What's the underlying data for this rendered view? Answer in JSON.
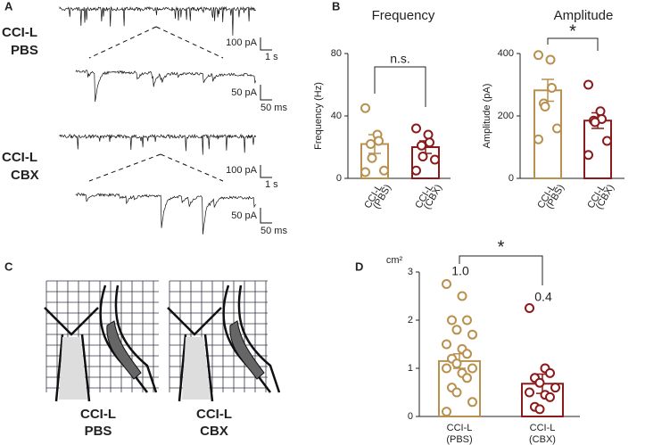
{
  "panel_labels": [
    "A",
    "B",
    "C",
    "D"
  ],
  "recordings": [
    {
      "label": [
        "CCI-L",
        "PBS"
      ],
      "scale_slow": [
        "100 pA",
        "1 s"
      ],
      "scale_fast": [
        "50 pA",
        "50 ms"
      ]
    },
    {
      "label": [
        "CCI-L",
        "CBX"
      ],
      "scale_slow": [
        "100 pA",
        "1 s"
      ],
      "scale_fast": [
        "50 pA",
        "50 ms"
      ]
    }
  ],
  "histology": [
    {
      "label": [
        "CCI-L",
        "PBS"
      ]
    },
    {
      "label": [
        "CCI-L",
        "CBX"
      ]
    }
  ],
  "chart_data": [
    {
      "type": "bar",
      "title": "Frequency",
      "ylabel": "Frequency (Hz)",
      "categories": [
        [
          "CCI-L",
          "(PBS)"
        ],
        [
          "CCI-L",
          "(CBX)"
        ]
      ],
      "values": [
        22,
        20
      ],
      "errors": [
        6,
        4
      ],
      "points": [
        [
          45,
          28,
          24,
          22,
          13,
          5,
          4
        ],
        [
          32,
          28,
          23,
          21,
          14,
          12,
          5
        ]
      ],
      "colors": [
        "#b8904f",
        "#8b1a1a"
      ],
      "ylim": [
        0,
        80
      ],
      "yticks": [
        0,
        40,
        80
      ],
      "annotation": "n.s."
    },
    {
      "type": "bar",
      "title": "Amplitude",
      "ylabel": "Amplitude (pA)",
      "categories": [
        [
          "CCI-L",
          "(PBS)"
        ],
        [
          "CCI-L",
          "(CBX)"
        ]
      ],
      "values": [
        282,
        185
      ],
      "errors": [
        35,
        25
      ],
      "points": [
        [
          395,
          380,
          290,
          240,
          230,
          160,
          125
        ],
        [
          300,
          215,
          190,
          185,
          180,
          120,
          75
        ]
      ],
      "colors": [
        "#b8904f",
        "#8b1a1a"
      ],
      "ylim": [
        0,
        400
      ],
      "yticks": [
        0,
        200,
        400
      ],
      "annotation": "*"
    },
    {
      "type": "bar",
      "ylabel": "cm²",
      "categories": [
        [
          "CCI-L",
          "(PBS)"
        ],
        [
          "CCI-L",
          "(CBX)"
        ]
      ],
      "values": [
        1.15,
        0.68
      ],
      "errors": [
        0.15,
        0.2
      ],
      "points": [
        [
          2.75,
          2.5,
          2.0,
          2.0,
          1.8,
          1.7,
          1.5,
          1.4,
          1.3,
          1.2,
          1.1,
          1.0,
          1.0,
          0.9,
          0.8,
          0.6,
          0.5,
          0.3,
          0.1
        ],
        [
          2.25,
          1.0,
          0.9,
          0.8,
          0.7,
          0.6,
          0.5,
          0.45,
          0.4,
          0.2,
          0.15
        ]
      ],
      "colors": [
        "#b8904f",
        "#8b1a1a"
      ],
      "ylim": [
        0,
        3
      ],
      "yticks": [
        0,
        1,
        2,
        3
      ],
      "annotation": "*",
      "bar_annotations": [
        "1.0",
        "0.4"
      ]
    }
  ]
}
